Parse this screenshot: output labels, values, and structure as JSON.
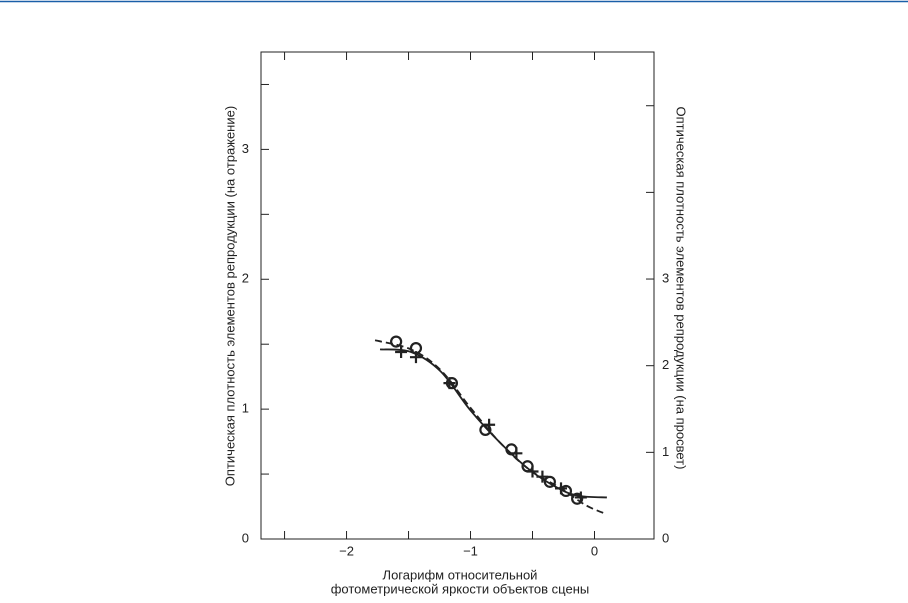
{
  "chart_data": {
    "type": "line",
    "ylabel": "Оптическая плотность элементов репродукции (на отражение)",
    "y2label": "Оптическая плотность элементов репродукции (на просвет)",
    "xlabel": [
      "Логарифм относительной",
      "фотометрической яркости объектов сцены"
    ],
    "xlim": [
      -2.69,
      0.48
    ],
    "xticks": [
      {
        "value": -2,
        "label": "−2"
      },
      {
        "value": -1,
        "label": "−1"
      },
      0
    ],
    "minor_xticks": [
      -2.5,
      -1.5,
      -0.5
    ],
    "ylim": [
      0,
      3.75
    ],
    "yticks": [
      0,
      1,
      2,
      3
    ],
    "minor_yticks": [
      0.5,
      1.5,
      2.5,
      3.5
    ],
    "y2lim": [
      0,
      5.62
    ],
    "y2ticks": [
      0,
      1,
      2,
      3
    ],
    "unlabeled_y2ticks": [
      4,
      5
    ],
    "color": "#222222",
    "series": [
      {
        "marker": "none",
        "dash": false,
        "x": [
          -1.73,
          -1.48,
          -1.24,
          -1.0,
          -0.76,
          -0.52,
          -0.27,
          -0.11,
          0.1
        ],
        "values": [
          1.46,
          1.44,
          1.29,
          0.99,
          0.74,
          0.53,
          0.38,
          0.33,
          0.32
        ]
      },
      {
        "marker": "none",
        "dash": true,
        "x": [
          -1.77,
          -1.48,
          -1.24,
          -1.0,
          -0.76,
          -0.52,
          -0.27,
          -0.07,
          0.1
        ],
        "values": [
          1.53,
          1.46,
          1.3,
          1.01,
          0.74,
          0.53,
          0.39,
          0.26,
          0.19
        ]
      },
      {
        "marker": "circle",
        "dash": false,
        "x": [
          -1.6,
          -1.44,
          -1.15,
          -0.88,
          -0.67,
          -0.54,
          -0.36,
          -0.23,
          -0.14
        ],
        "values": [
          1.52,
          1.47,
          1.2,
          0.84,
          0.69,
          0.56,
          0.44,
          0.37,
          0.31
        ]
      },
      {
        "marker": "cross",
        "dash": false,
        "x": [
          -1.56,
          -1.44,
          -1.17,
          -0.85,
          -0.63,
          -0.5,
          -0.42,
          -0.27,
          -0.11
        ],
        "values": [
          1.44,
          1.4,
          1.2,
          0.88,
          0.66,
          0.52,
          0.48,
          0.39,
          0.32
        ]
      }
    ]
  }
}
